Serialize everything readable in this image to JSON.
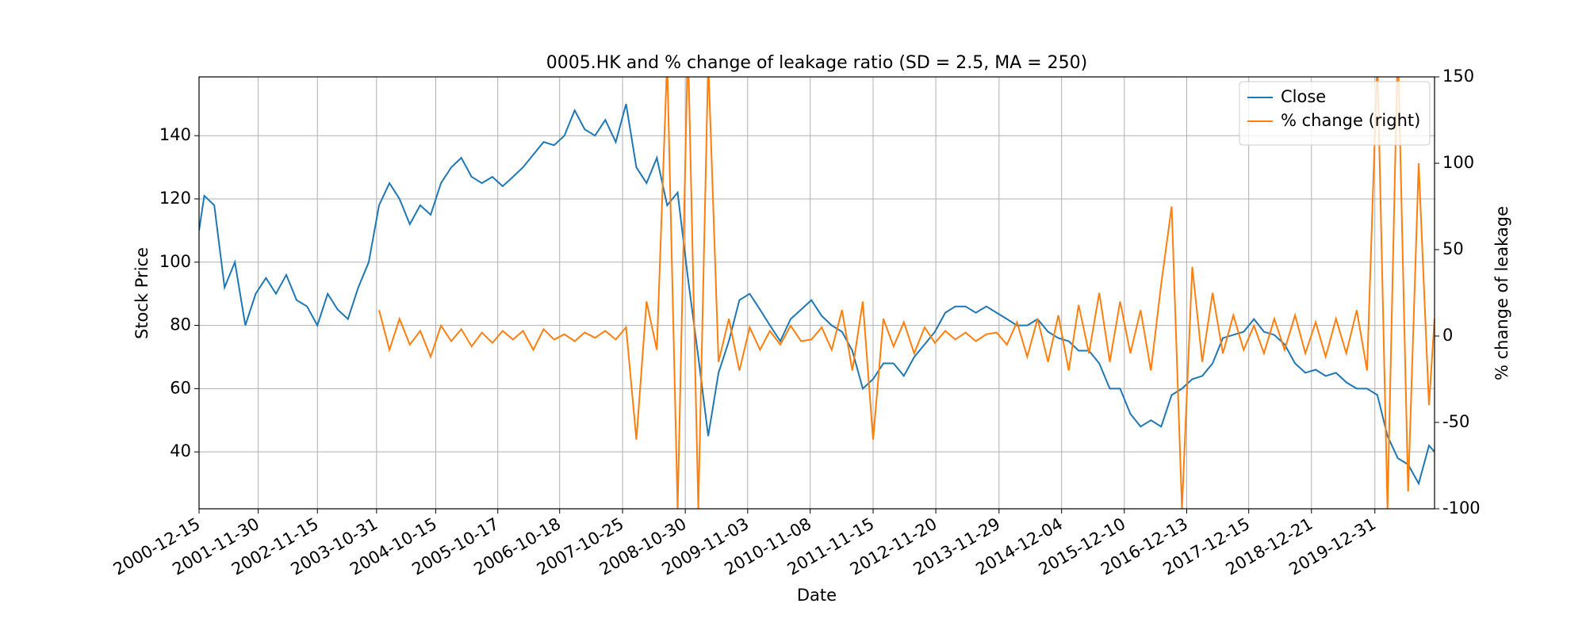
{
  "chart_data": {
    "type": "line",
    "title": "0005.HK and % change of leakage ratio (SD = 2.5, MA = 250)",
    "x_label": "Date",
    "y_label": "Stock Price",
    "y2_label": "% change of leakage",
    "x": [
      "2000-12-15",
      "2001-01-15",
      "2001-03-15",
      "2001-05-15",
      "2001-07-15",
      "2001-09-15",
      "2001-11-15",
      "2002-01-15",
      "2002-03-15",
      "2002-05-15",
      "2002-07-15",
      "2002-09-15",
      "2002-11-15",
      "2003-01-15",
      "2003-03-15",
      "2003-05-15",
      "2003-07-15",
      "2003-09-15",
      "2003-11-15",
      "2004-01-15",
      "2004-03-15",
      "2004-05-15",
      "2004-07-15",
      "2004-09-15",
      "2004-11-15",
      "2005-01-15",
      "2005-03-15",
      "2005-05-15",
      "2005-07-15",
      "2005-09-15",
      "2005-11-15",
      "2006-01-15",
      "2006-03-15",
      "2006-05-15",
      "2006-07-15",
      "2006-09-15",
      "2006-11-15",
      "2007-01-15",
      "2007-03-15",
      "2007-05-15",
      "2007-07-15",
      "2007-09-15",
      "2007-11-15",
      "2008-01-15",
      "2008-03-15",
      "2008-05-15",
      "2008-07-15",
      "2008-09-15",
      "2008-11-15",
      "2009-01-15",
      "2009-03-15",
      "2009-05-15",
      "2009-07-15",
      "2009-09-15",
      "2009-11-15",
      "2010-01-15",
      "2010-03-15",
      "2010-05-15",
      "2010-07-15",
      "2010-09-15",
      "2010-11-15",
      "2011-01-15",
      "2011-03-15",
      "2011-05-15",
      "2011-07-15",
      "2011-09-15",
      "2011-11-15",
      "2012-01-15",
      "2012-03-15",
      "2012-05-15",
      "2012-07-15",
      "2012-09-15",
      "2012-11-15",
      "2013-01-15",
      "2013-03-15",
      "2013-05-15",
      "2013-07-15",
      "2013-09-15",
      "2013-11-15",
      "2014-01-15",
      "2014-03-15",
      "2014-05-15",
      "2014-07-15",
      "2014-09-15",
      "2014-11-15",
      "2015-01-15",
      "2015-03-15",
      "2015-05-15",
      "2015-07-15",
      "2015-09-15",
      "2015-11-15",
      "2016-01-15",
      "2016-03-15",
      "2016-05-15",
      "2016-07-15",
      "2016-09-15",
      "2016-11-15",
      "2017-01-15",
      "2017-03-15",
      "2017-05-15",
      "2017-07-15",
      "2017-09-15",
      "2017-11-15",
      "2018-01-15",
      "2018-03-15",
      "2018-05-15",
      "2018-07-15",
      "2018-09-15",
      "2018-11-15",
      "2019-01-15",
      "2019-03-15",
      "2019-05-15",
      "2019-07-15",
      "2019-09-15",
      "2019-11-15",
      "2020-01-15",
      "2020-03-15",
      "2020-05-15",
      "2020-07-15",
      "2020-09-15",
      "2020-11-15",
      "2020-12-18"
    ],
    "series": [
      {
        "name": "Close",
        "color": "#1f77b4",
        "values": [
          110,
          121,
          118,
          92,
          100,
          80,
          90,
          95,
          90,
          96,
          88,
          86,
          80,
          90,
          85,
          82,
          92,
          100,
          118,
          125,
          120,
          112,
          118,
          115,
          125,
          130,
          133,
          127,
          125,
          127,
          124,
          127,
          130,
          134,
          138,
          137,
          140,
          148,
          142,
          140,
          145,
          138,
          150,
          130,
          125,
          133,
          118,
          122,
          95,
          70,
          45,
          65,
          75,
          88,
          90,
          85,
          80,
          75,
          82,
          85,
          88,
          83,
          80,
          78,
          72,
          60,
          63,
          68,
          68,
          64,
          70,
          74,
          78,
          84,
          86,
          86,
          84,
          86,
          84,
          82,
          80,
          80,
          82,
          78,
          76,
          75,
          72,
          72,
          68,
          60,
          60,
          52,
          48,
          50,
          48,
          58,
          60,
          63,
          64,
          68,
          76,
          77,
          78,
          82,
          78,
          77,
          74,
          68,
          65,
          66,
          64,
          65,
          62,
          60,
          60,
          58,
          45,
          38,
          36,
          30,
          42,
          40
        ]
      },
      {
        "name": "% change (right)",
        "color": "#ff7f0e",
        "axis": "y2",
        "values": [
          null,
          null,
          null,
          null,
          null,
          null,
          null,
          null,
          null,
          null,
          null,
          null,
          null,
          null,
          null,
          null,
          null,
          null,
          15,
          -8,
          10,
          -5,
          3,
          -12,
          6,
          -3,
          4,
          -6,
          2,
          -4,
          3,
          -2,
          3,
          -8,
          4,
          -2,
          1,
          -3,
          2,
          -1,
          3,
          -2,
          5,
          -60,
          20,
          -8,
          160,
          -100,
          170,
          -100,
          160,
          -15,
          10,
          -20,
          5,
          -8,
          3,
          -5,
          6,
          -3,
          -2,
          5,
          -8,
          15,
          -20,
          20,
          -60,
          10,
          -6,
          8,
          -10,
          5,
          -4,
          3,
          -2,
          2,
          -3,
          1,
          2,
          -5,
          8,
          -12,
          10,
          -15,
          12,
          -20,
          18,
          -10,
          25,
          -15,
          20,
          -10,
          15,
          -20,
          30,
          75,
          -100,
          40,
          -15,
          25,
          -10,
          12,
          -8,
          6,
          -10,
          10,
          -8,
          12,
          -10,
          8,
          -12,
          10,
          -10,
          15,
          -20,
          160,
          -100,
          170,
          -90,
          100,
          -40,
          10
        ]
      }
    ],
    "xlim": [
      "2000-12-15",
      "2020-12-18"
    ],
    "xticks": [
      "2000-12-15",
      "2001-11-30",
      "2002-11-15",
      "2003-10-31",
      "2004-10-15",
      "2005-10-17",
      "2006-10-18",
      "2007-10-25",
      "2008-10-30",
      "2009-11-03",
      "2010-11-08",
      "2011-11-15",
      "2012-11-20",
      "2013-11-29",
      "2014-12-04",
      "2015-12-10",
      "2016-12-13",
      "2017-12-15",
      "2018-12-21",
      "2019-12-31"
    ],
    "ylim": [
      22,
      158.6
    ],
    "yticks": [
      40,
      60,
      80,
      100,
      120,
      140
    ],
    "y2lim": [
      -100,
      150
    ],
    "y2ticks": [
      -100,
      -50,
      0,
      50,
      100,
      150
    ],
    "grid": true,
    "legend": "upper right"
  }
}
